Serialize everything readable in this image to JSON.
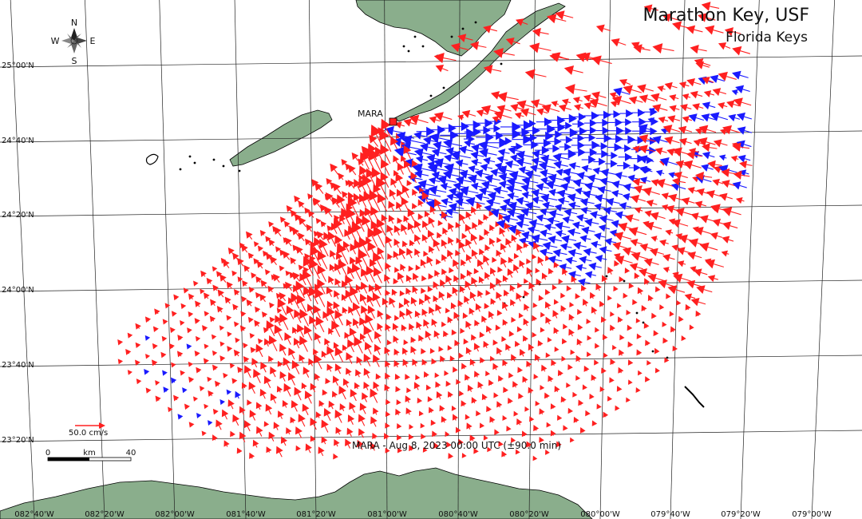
{
  "title": "Marathon Key, USF",
  "subtitle": "Florida Keys",
  "station": {
    "label": "MARA"
  },
  "caption": "MARA - Aug 8, 2023 00:00 UTC (±90.0 min)",
  "legend_vector": {
    "label": "50.0 cm/s"
  },
  "scale_bar": {
    "left_label": "0",
    "unit_label": "km",
    "right_label": "40"
  },
  "compass": {
    "n": "N",
    "s": "S",
    "e": "E",
    "w": "W"
  },
  "lat_labels": [
    "25°00'N",
    "24°40'N",
    "24°20'N",
    "24°00'N",
    "23°40'N",
    "23°20'N"
  ],
  "lon_labels": [
    "082°40'W",
    "082°20'W",
    "082°00'W",
    "081°40'W",
    "081°20'W",
    "081°00'W",
    "080°40'W",
    "080°20'W",
    "080°00'W",
    "079°40'W",
    "079°20'W",
    "079°00'W"
  ],
  "colors": {
    "land": "#8aae8c",
    "grid": "#222222",
    "away_from_radar": "#ff2020",
    "toward_radar": "#1a1aff",
    "coast": "#000000"
  }
}
